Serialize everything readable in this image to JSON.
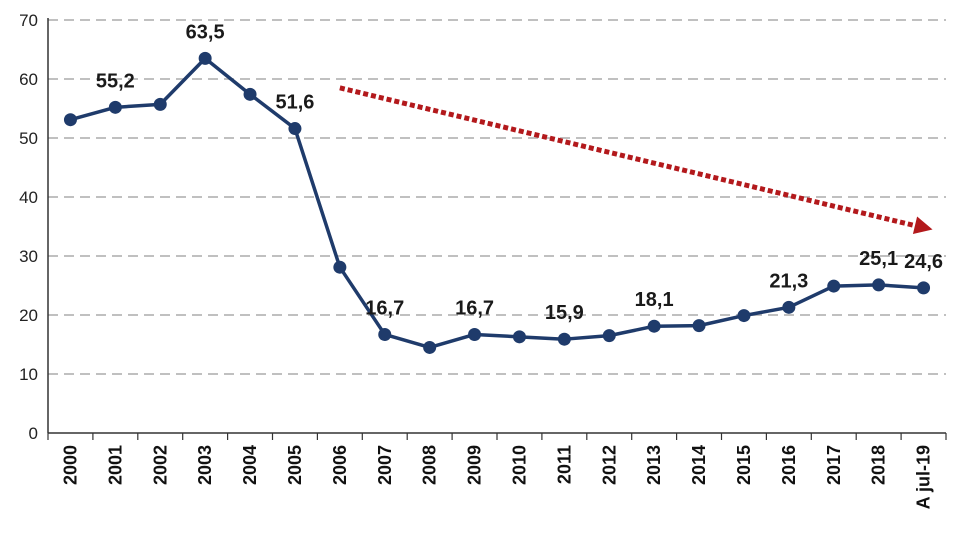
{
  "chart_data": {
    "type": "line",
    "categories": [
      "2000",
      "2001",
      "2002",
      "2003",
      "2004",
      "2005",
      "2006",
      "2007",
      "2008",
      "2009",
      "2010",
      "2011",
      "2012",
      "2013",
      "2014",
      "2015",
      "2016",
      "2017",
      "2018",
      "A jul-19"
    ],
    "series": [
      {
        "values": [
          53.1,
          55.2,
          55.7,
          63.5,
          57.4,
          51.6,
          28.1,
          16.7,
          14.5,
          16.7,
          16.3,
          15.9,
          16.5,
          18.1,
          18.2,
          19.9,
          21.3,
          24.9,
          25.1,
          24.6
        ]
      }
    ],
    "data_labels": [
      {
        "category": "2001",
        "text": "55,2"
      },
      {
        "category": "2003",
        "text": "63,5"
      },
      {
        "category": "2005",
        "text": "51,6"
      },
      {
        "category": "2007",
        "text": "16,7"
      },
      {
        "category": "2009",
        "text": "16,7"
      },
      {
        "category": "2011",
        "text": "15,9"
      },
      {
        "category": "2013",
        "text": "18,1"
      },
      {
        "category": "2016",
        "text": "21,3"
      },
      {
        "category": "2018",
        "text": "25,1"
      },
      {
        "category": "A jul-19",
        "text": "24,6"
      }
    ],
    "ylim": [
      0,
      70
    ],
    "yticks": [
      "0",
      "10",
      "20",
      "30",
      "40",
      "50",
      "60",
      "70"
    ],
    "grid": true,
    "trend_arrow": {
      "style": "dotted",
      "from": {
        "x": 6,
        "y": 58.5
      },
      "to": {
        "x": 19.2,
        "y": 34.5
      }
    },
    "colors": {
      "line": "#1f3b6b",
      "arrow": "#b3191c",
      "grid": "#c0c0c0",
      "axis": "#333333"
    }
  }
}
